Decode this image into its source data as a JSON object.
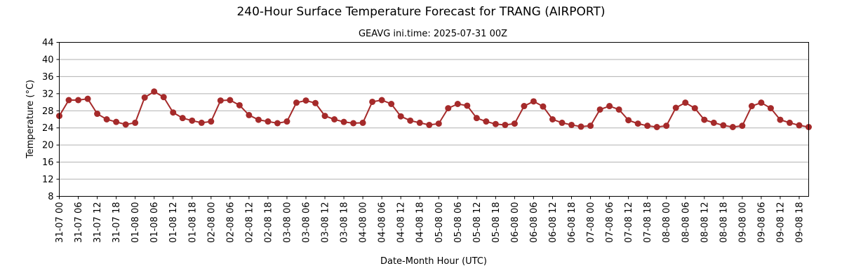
{
  "chart_data": {
    "type": "line",
    "title": "240-Hour Surface Temperature Forecast for TRANG (AIRPORT)",
    "subtitle": "GEAVG ini.time: 2025-07-31 00Z",
    "xlabel": "Date-Month Hour (UTC)",
    "ylabel": "Temperature (°C)",
    "ylim": [
      8,
      44
    ],
    "yticks": [
      8,
      12,
      16,
      20,
      24,
      28,
      32,
      36,
      40,
      44
    ],
    "grid": "horizontal",
    "x_tick_labels": [
      "31-07 00",
      "31-07 06",
      "31-07 12",
      "31-07 18",
      "01-08 00",
      "01-08 06",
      "01-08 12",
      "01-08 18",
      "02-08 00",
      "02-08 06",
      "02-08 12",
      "02-08 18",
      "03-08 00",
      "03-08 06",
      "03-08 12",
      "03-08 18",
      "04-08 00",
      "04-08 06",
      "04-08 12",
      "04-08 18",
      "05-08 00",
      "05-08 06",
      "05-08 12",
      "05-08 18",
      "06-08 00",
      "06-08 06",
      "06-08 12",
      "06-08 18",
      "07-08 00",
      "07-08 06",
      "07-08 12",
      "07-08 18",
      "08-08 00",
      "08-08 06",
      "08-08 12",
      "08-08 18",
      "09-08 00",
      "09-08 06",
      "09-08 12",
      "09-08 18"
    ],
    "x_step_hours": 3,
    "series": [
      {
        "name": "",
        "color": "#a52a2a",
        "values": [
          26.8,
          30.5,
          30.5,
          30.8,
          27.3,
          26.0,
          25.4,
          24.8,
          25.2,
          31.1,
          32.5,
          31.2,
          27.6,
          26.3,
          25.7,
          25.2,
          25.5,
          30.4,
          30.5,
          29.3,
          27.0,
          25.9,
          25.5,
          25.1,
          25.5,
          29.9,
          30.4,
          29.8,
          26.8,
          26.0,
          25.4,
          25.1,
          25.2,
          30.1,
          30.5,
          29.6,
          26.7,
          25.7,
          25.2,
          24.7,
          25.0,
          28.6,
          29.6,
          29.2,
          26.3,
          25.5,
          24.9,
          24.7,
          25.0,
          29.1,
          30.2,
          29.0,
          26.0,
          25.2,
          24.7,
          24.3,
          24.5,
          28.3,
          29.1,
          28.3,
          25.8,
          25.0,
          24.5,
          24.2,
          24.5,
          28.7,
          29.9,
          28.6,
          25.9,
          25.2,
          24.6,
          24.2,
          24.5,
          29.1,
          29.9,
          28.6,
          25.9,
          25.2,
          24.6,
          24.2
        ]
      }
    ]
  }
}
